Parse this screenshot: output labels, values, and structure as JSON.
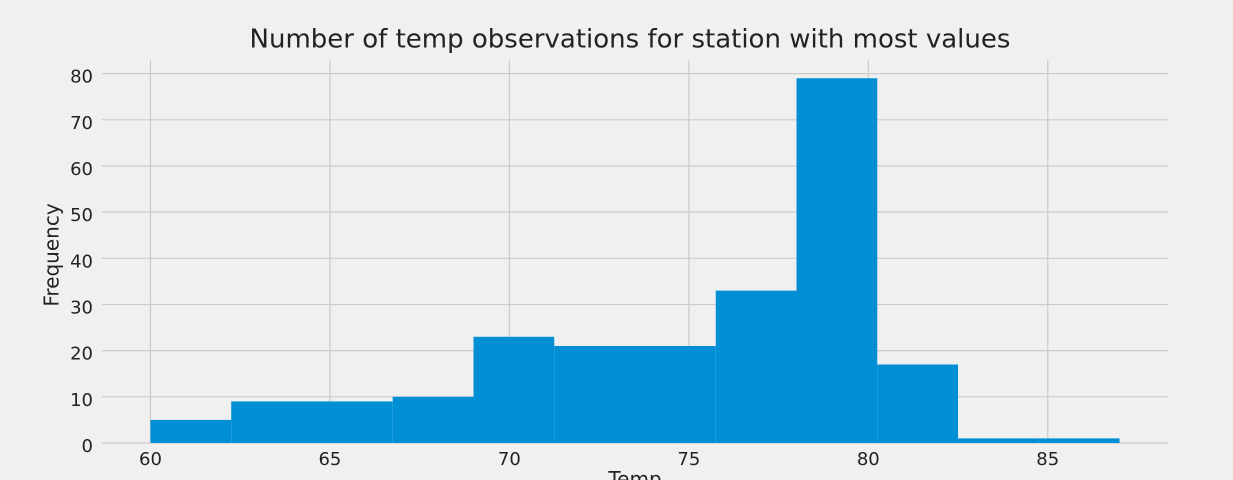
{
  "chart_data": {
    "type": "histogram",
    "title": "Number of temp observations for station with most values",
    "x_label": "Temp",
    "y_label": "Frequency",
    "bins": [
      60,
      62.25,
      64.5,
      66.75,
      69,
      71.25,
      73.5,
      75.75,
      78,
      80.25,
      82.5,
      84.75,
      87
    ],
    "values": [
      5,
      9,
      9,
      10,
      23,
      21,
      21,
      33,
      79,
      17,
      1,
      1
    ],
    "color": "#008fd5",
    "xlim": [
      58.65,
      88.35
    ],
    "xticks": [
      60,
      65,
      70,
      75,
      80,
      85
    ],
    "ylim": [
      0,
      82.95
    ],
    "yticks": [
      0,
      10,
      20,
      30,
      40,
      50,
      60,
      70,
      80
    ],
    "grid": true
  }
}
